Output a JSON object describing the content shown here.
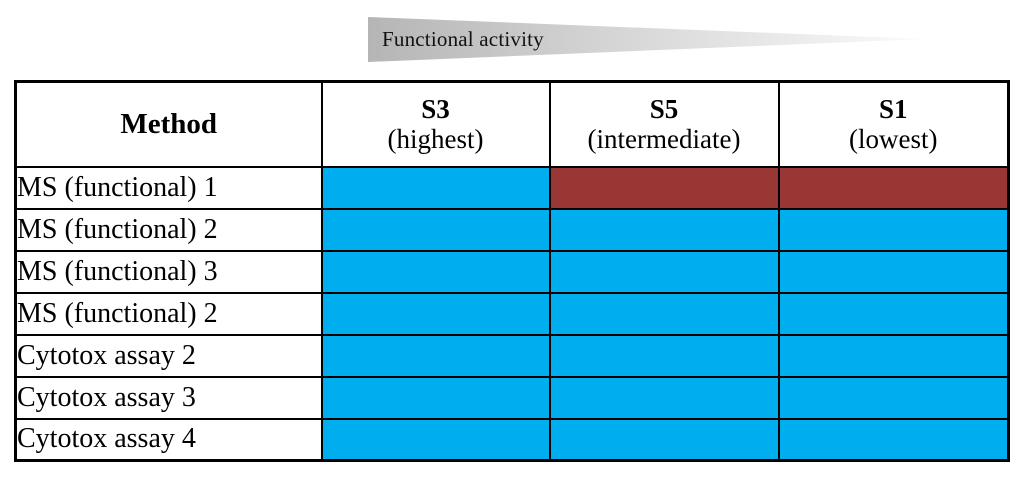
{
  "arrow": {
    "label": "Functional activity"
  },
  "table": {
    "columns": [
      {
        "title": "Method",
        "subtitle": ""
      },
      {
        "title": "S3",
        "subtitle": "(highest)"
      },
      {
        "title": "S5",
        "subtitle": "(intermediate)"
      },
      {
        "title": "S1",
        "subtitle": "(lowest)"
      }
    ],
    "rows": [
      {
        "method": "MS (functional) 1",
        "cells": [
          "blue",
          "red",
          "red"
        ]
      },
      {
        "method": "MS (functional) 2",
        "cells": [
          "blue",
          "blue",
          "blue"
        ]
      },
      {
        "method": "MS (functional) 3",
        "cells": [
          "blue",
          "blue",
          "blue"
        ]
      },
      {
        "method": "MS (functional) 2",
        "cells": [
          "blue",
          "blue",
          "blue"
        ]
      },
      {
        "method": "Cytotox assay 2",
        "cells": [
          "blue",
          "blue",
          "blue"
        ]
      },
      {
        "method": "Cytotox assay 3",
        "cells": [
          "blue",
          "blue",
          "blue"
        ]
      },
      {
        "method": "Cytotox assay 4",
        "cells": [
          "blue",
          "blue",
          "blue"
        ]
      }
    ],
    "colors": {
      "blue": "#00AEEF",
      "red": "#993735"
    }
  },
  "chart_data": {
    "type": "heatmap",
    "title": "Functional activity",
    "columns": [
      "S3 (highest)",
      "S5 (intermediate)",
      "S1 (lowest)"
    ],
    "rows": [
      "MS (functional) 1",
      "MS (functional) 2",
      "MS (functional) 3",
      "MS (functional) 2",
      "Cytotox assay 2",
      "Cytotox assay 3",
      "Cytotox assay 4"
    ],
    "cell_colors": [
      [
        "#00AEEF",
        "#993735",
        "#993735"
      ],
      [
        "#00AEEF",
        "#00AEEF",
        "#00AEEF"
      ],
      [
        "#00AEEF",
        "#00AEEF",
        "#00AEEF"
      ],
      [
        "#00AEEF",
        "#00AEEF",
        "#00AEEF"
      ],
      [
        "#00AEEF",
        "#00AEEF",
        "#00AEEF"
      ],
      [
        "#00AEEF",
        "#00AEEF",
        "#00AEEF"
      ],
      [
        "#00AEEF",
        "#00AEEF",
        "#00AEEF"
      ]
    ],
    "legend": null,
    "layout_hints": "gradient arrow above table points right from highest to lowest functional activity"
  }
}
